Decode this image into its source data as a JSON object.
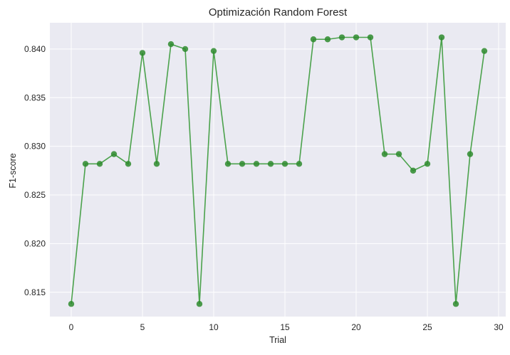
{
  "chart_data": {
    "type": "line",
    "title": "Optimización Random Forest",
    "xlabel": "Trial",
    "ylabel": "F1-score",
    "xlim": [
      -1.5,
      30.5
    ],
    "ylim": [
      0.8125,
      0.8427
    ],
    "xticks": [
      0,
      5,
      10,
      15,
      20,
      25,
      30
    ],
    "yticks": [
      0.815,
      0.82,
      0.825,
      0.83,
      0.835,
      0.84
    ],
    "ytick_labels": [
      "0.815",
      "0.820",
      "0.825",
      "0.830",
      "0.835",
      "0.840"
    ],
    "grid": true,
    "series": [
      {
        "color": "#2e8b2e",
        "x": [
          0,
          1,
          2,
          3,
          4,
          5,
          6,
          7,
          8,
          9,
          10,
          11,
          12,
          13,
          14,
          15,
          16,
          17,
          18,
          19,
          20,
          21,
          22,
          23,
          24,
          25,
          26,
          27,
          28,
          29
        ],
        "values": [
          0.8138,
          0.8282,
          0.8282,
          0.8292,
          0.8282,
          0.8396,
          0.8282,
          0.8405,
          0.84,
          0.8138,
          0.8398,
          0.8282,
          0.8282,
          0.8282,
          0.8282,
          0.8282,
          0.8282,
          0.841,
          0.841,
          0.8412,
          0.8412,
          0.8412,
          0.8292,
          0.8292,
          0.8275,
          0.8282,
          0.8412,
          0.8138,
          0.8292,
          0.8398
        ]
      }
    ]
  },
  "colors": {
    "plot_background": "#eaeaf2",
    "grid": "#ffffff",
    "line": "#3a9a3a",
    "marker": "#2e8b2e"
  }
}
